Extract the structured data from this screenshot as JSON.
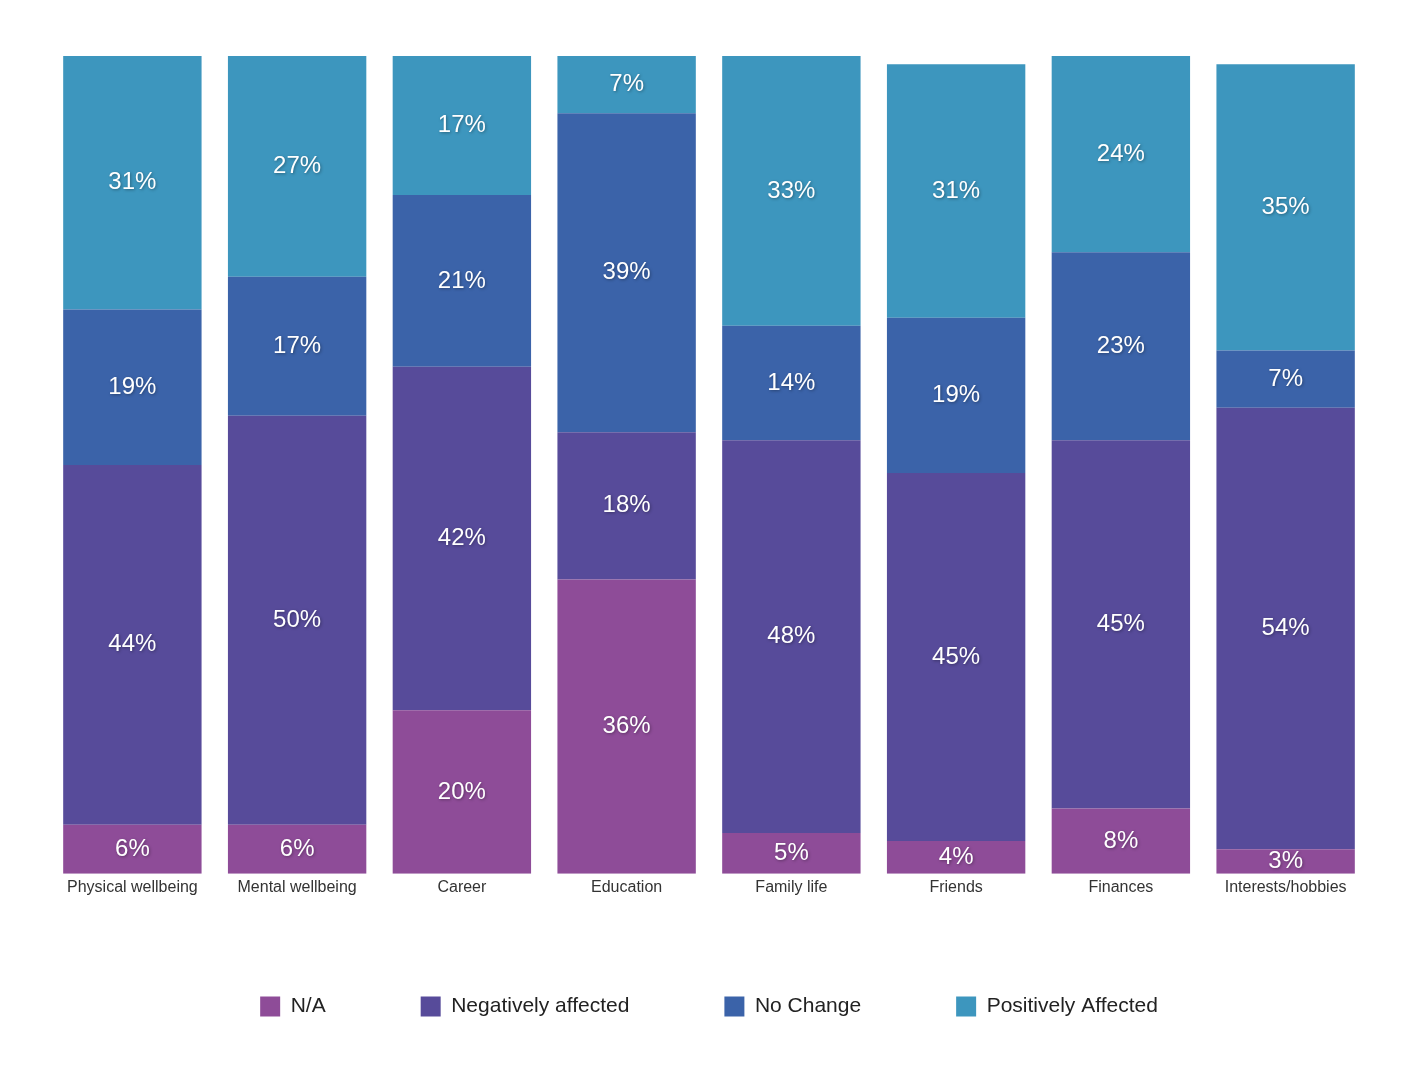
{
  "chart_data": {
    "type": "bar",
    "stacked": true,
    "grid": false,
    "data_labels": true,
    "tick_labels": "x",
    "legend": "bottom",
    "categories": [
      "Physical wellbeing",
      "Mental wellbeing",
      "Career",
      "Education",
      "Family life",
      "Friends",
      "Finances",
      "Interests/hobbies"
    ],
    "ylim": [
      0,
      100
    ],
    "yticks": [
      0,
      100
    ],
    "series": [
      {
        "name": "N/A",
        "color": "#8e4c98",
        "values": [
          6,
          6,
          20,
          36,
          5,
          4,
          8,
          3
        ],
        "value_labels": [
          "6%",
          "6%",
          "20%",
          "36%",
          "5%",
          "4%",
          "8%",
          "3%"
        ]
      },
      {
        "name": "Negatively affected",
        "color": "#574b9a",
        "values": [
          44,
          50,
          42,
          18,
          48,
          45,
          45,
          54
        ],
        "value_labels": [
          "44%",
          "50%",
          "42%",
          "18%",
          "48%",
          "45%",
          "45%",
          "54%"
        ]
      },
      {
        "name": "No Change",
        "color": "#3b63a9",
        "values": [
          19,
          17,
          21,
          39,
          14,
          19,
          23,
          7
        ],
        "value_labels": [
          "19%",
          "17%",
          "21%",
          "39%",
          "14%",
          "19%",
          "23%",
          "7%"
        ]
      },
      {
        "name": "Positively Affected",
        "color": "#3d96be",
        "values": [
          31,
          27,
          17,
          7,
          33,
          31,
          24,
          35
        ],
        "value_labels": [
          "31%",
          "27%",
          "17%",
          "7%",
          "33%",
          "31%",
          "24%",
          "35%"
        ]
      }
    ]
  }
}
